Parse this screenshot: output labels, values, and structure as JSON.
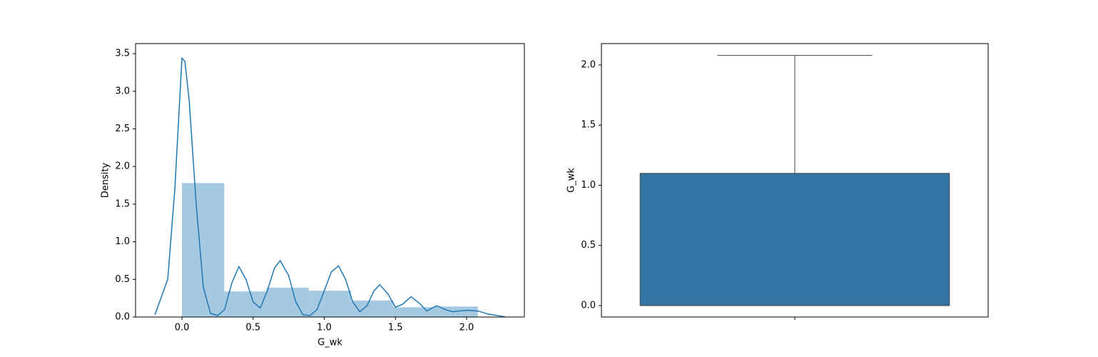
{
  "chart_data": [
    {
      "type": "histogram",
      "xlabel": "G_wk",
      "ylabel": "Density",
      "bins": [
        0,
        0.297,
        0.594,
        0.891,
        1.188,
        1.485,
        1.782,
        2.079
      ],
      "values": [
        1.78,
        0.34,
        0.39,
        0.35,
        0.22,
        0.13,
        0.14
      ],
      "color": "#1f77b4",
      "kde": {
        "color": "#1f77b4",
        "x": [
          -0.19,
          -0.1,
          -0.05,
          0,
          0.02,
          0.05,
          0.1,
          0.15,
          0.2,
          0.25,
          0.3,
          0.35,
          0.4,
          0.45,
          0.5,
          0.55,
          0.6,
          0.65,
          0.69,
          0.75,
          0.8,
          0.85,
          0.9,
          0.95,
          1.0,
          1.05,
          1.1,
          1.15,
          1.2,
          1.25,
          1.3,
          1.35,
          1.39,
          1.45,
          1.5,
          1.55,
          1.61,
          1.67,
          1.72,
          1.79,
          1.85,
          1.9,
          2.0,
          2.08,
          2.15,
          2.27
        ],
        "y": [
          0.03,
          0.5,
          1.7,
          3.44,
          3.4,
          2.9,
          1.5,
          0.4,
          0.05,
          0.02,
          0.1,
          0.45,
          0.67,
          0.5,
          0.2,
          0.12,
          0.35,
          0.65,
          0.75,
          0.55,
          0.2,
          0.03,
          0.02,
          0.1,
          0.35,
          0.6,
          0.68,
          0.5,
          0.2,
          0.07,
          0.15,
          0.35,
          0.43,
          0.3,
          0.13,
          0.17,
          0.27,
          0.18,
          0.08,
          0.15,
          0.1,
          0.07,
          0.09,
          0.08,
          0.04,
          0.003
        ]
      },
      "xlim": [
        -0.326,
        2.406
      ],
      "ylim": [
        0,
        3.634
      ],
      "xticks": [
        {
          "value": 0,
          "label": "0.0"
        },
        0.5,
        {
          "value": 1,
          "label": "1.0"
        },
        1.5,
        {
          "value": 2,
          "label": "2.0"
        }
      ],
      "yticks": [
        {
          "value": 0,
          "label": "0.0"
        },
        0.5,
        {
          "value": 1,
          "label": "1.0"
        },
        1.5,
        {
          "value": 2,
          "label": "2.0"
        },
        2.5,
        {
          "value": 3,
          "label": "3.0"
        },
        3.5
      ]
    },
    {
      "type": "box",
      "ylabel": "G_wk",
      "color": "#3274a1",
      "whislo": 0,
      "q1": 0,
      "median": 0,
      "q3": 1.099,
      "whishi": 2.079,
      "ylim": [
        -0.095,
        2.178
      ],
      "yticks": [
        {
          "value": 0,
          "label": "0.0"
        },
        0.5,
        {
          "value": 1,
          "label": "1.0"
        },
        1.5,
        {
          "value": 2,
          "label": "2.0"
        }
      ]
    }
  ]
}
